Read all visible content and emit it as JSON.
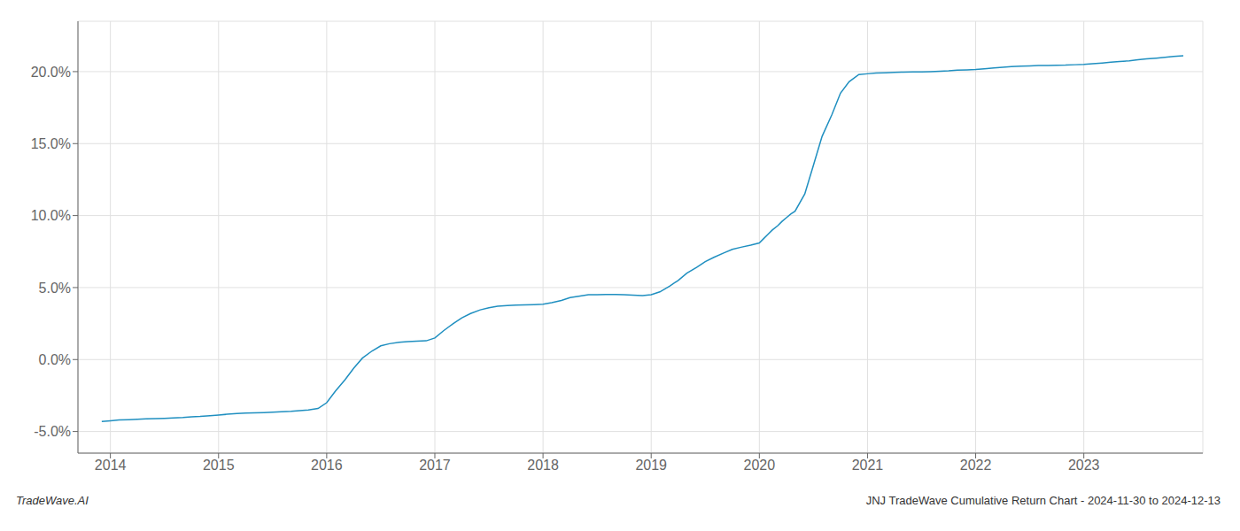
{
  "chart_data": {
    "type": "line",
    "annotations": [
      "TradeWave.AI",
      "JNJ TradeWave Cumulative Return Chart - 2024-11-30 to 2024-12-13"
    ],
    "x": [
      2013.92,
      2014.0,
      2014.08,
      2014.17,
      2014.25,
      2014.33,
      2014.42,
      2014.5,
      2014.58,
      2014.67,
      2014.75,
      2014.83,
      2014.92,
      2015.0,
      2015.08,
      2015.17,
      2015.25,
      2015.33,
      2015.42,
      2015.5,
      2015.58,
      2015.67,
      2015.75,
      2015.83,
      2015.92,
      2016.0,
      2016.08,
      2016.17,
      2016.25,
      2016.33,
      2016.42,
      2016.5,
      2016.58,
      2016.67,
      2016.75,
      2016.83,
      2016.92,
      2017.0,
      2017.08,
      2017.17,
      2017.25,
      2017.33,
      2017.42,
      2017.5,
      2017.58,
      2017.67,
      2017.75,
      2017.83,
      2017.92,
      2018.0,
      2018.08,
      2018.17,
      2018.25,
      2018.33,
      2018.42,
      2018.5,
      2018.58,
      2018.67,
      2018.75,
      2018.83,
      2018.92,
      2019.0,
      2019.08,
      2019.17,
      2019.25,
      2019.33,
      2019.42,
      2019.5,
      2019.58,
      2019.67,
      2019.75,
      2019.83,
      2019.92,
      2020.0,
      2020.04,
      2020.08,
      2020.12,
      2020.17,
      2020.21,
      2020.25,
      2020.29,
      2020.33,
      2020.42,
      2020.5,
      2020.58,
      2020.67,
      2020.75,
      2020.83,
      2020.92,
      2021.0,
      2021.08,
      2021.17,
      2021.25,
      2021.33,
      2021.42,
      2021.5,
      2021.58,
      2021.67,
      2021.75,
      2021.83,
      2021.92,
      2022.0,
      2022.08,
      2022.17,
      2022.25,
      2022.33,
      2022.42,
      2022.5,
      2022.58,
      2022.67,
      2022.75,
      2022.83,
      2022.92,
      2023.0,
      2023.08,
      2023.17,
      2023.25,
      2023.33,
      2023.42,
      2023.5,
      2023.58,
      2023.67,
      2023.75,
      2023.83,
      2023.92
    ],
    "values": [
      -4.3,
      -4.25,
      -4.2,
      -4.18,
      -4.15,
      -4.12,
      -4.1,
      -4.08,
      -4.05,
      -4.02,
      -3.98,
      -3.95,
      -3.9,
      -3.85,
      -3.8,
      -3.75,
      -3.72,
      -3.7,
      -3.68,
      -3.65,
      -3.62,
      -3.6,
      -3.55,
      -3.5,
      -3.4,
      -3.0,
      -2.2,
      -1.4,
      -0.6,
      0.1,
      0.6,
      0.95,
      1.1,
      1.2,
      1.25,
      1.28,
      1.3,
      1.5,
      2.0,
      2.5,
      2.9,
      3.2,
      3.45,
      3.6,
      3.7,
      3.75,
      3.78,
      3.8,
      3.82,
      3.85,
      3.95,
      4.1,
      4.3,
      4.4,
      4.5,
      4.5,
      4.52,
      4.52,
      4.5,
      4.48,
      4.45,
      4.5,
      4.7,
      5.1,
      5.5,
      6.0,
      6.4,
      6.8,
      7.1,
      7.4,
      7.65,
      7.8,
      7.95,
      8.1,
      8.4,
      8.7,
      9.0,
      9.3,
      9.6,
      9.85,
      10.1,
      10.3,
      11.5,
      13.5,
      15.5,
      17.0,
      18.5,
      19.3,
      19.8,
      19.85,
      19.9,
      19.92,
      19.95,
      19.97,
      19.98,
      19.98,
      20.0,
      20.02,
      20.05,
      20.1,
      20.12,
      20.15,
      20.2,
      20.25,
      20.3,
      20.35,
      20.38,
      20.4,
      20.42,
      20.43,
      20.44,
      20.45,
      20.48,
      20.5,
      20.55,
      20.6,
      20.65,
      20.7,
      20.75,
      20.82,
      20.88,
      20.94,
      21.0,
      21.05,
      21.1
    ],
    "color": "#1f8fc0",
    "xlim": [
      2013.7,
      2024.1
    ],
    "ylim": [
      -6.5,
      23.5
    ],
    "xticks": [
      2014,
      2015,
      2016,
      2017,
      2018,
      2019,
      2020,
      2021,
      2022,
      2023
    ],
    "yticks": [
      {
        "value": -5.0,
        "label": "-5.0%"
      },
      {
        "value": 0.0,
        "label": "0.0%"
      },
      {
        "value": 5.0,
        "label": "5.0%"
      },
      {
        "value": 10.0,
        "label": "10.0%"
      },
      {
        "value": 15.0,
        "label": "15.0%"
      },
      {
        "value": 20.0,
        "label": "20.0%"
      }
    ],
    "grid": true
  }
}
